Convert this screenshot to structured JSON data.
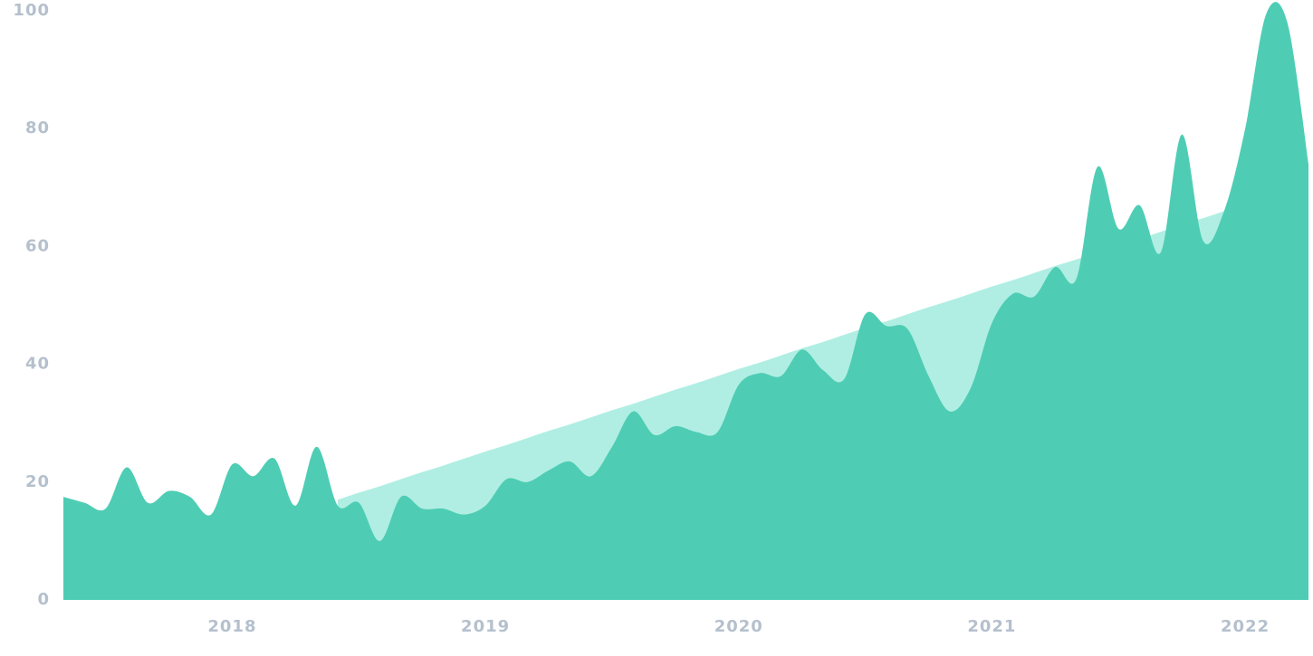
{
  "chart_data": {
    "type": "area",
    "categories": [
      null,
      null,
      null,
      null,
      null,
      null,
      null,
      null,
      "2018",
      null,
      null,
      null,
      null,
      null,
      null,
      null,
      null,
      null,
      null,
      null,
      "2019",
      null,
      null,
      null,
      null,
      null,
      null,
      null,
      null,
      null,
      null,
      null,
      "2020",
      null,
      null,
      null,
      null,
      null,
      null,
      null,
      null,
      null,
      null,
      null,
      "2021",
      null,
      null,
      null,
      null,
      null,
      null,
      null,
      null,
      null,
      null,
      null,
      "2022",
      null,
      null,
      null
    ],
    "series": [
      {
        "color": "#b0eee3",
        "values": [
          null,
          null,
          null,
          null,
          null,
          null,
          null,
          null,
          null,
          null,
          null,
          null,
          null,
          17.0,
          18.2,
          19.3,
          20.5,
          21.7,
          22.8,
          24.0,
          25.2,
          26.3,
          27.5,
          28.7,
          29.8,
          31.0,
          32.2,
          33.3,
          34.5,
          35.7,
          36.8,
          38.0,
          39.2,
          40.3,
          41.5,
          42.7,
          43.8,
          45.0,
          46.2,
          47.3,
          48.5,
          49.7,
          50.8,
          52.0,
          53.2,
          54.3,
          55.5,
          56.7,
          57.8,
          59.0,
          60.2,
          61.3,
          62.5,
          63.7,
          64.8,
          66.0,
          null,
          null,
          null,
          null
        ]
      },
      {
        "color": "#4ecdb4",
        "values": [
          17.5,
          16.5,
          15.5,
          22.5,
          16.5,
          18.5,
          17.5,
          14.5,
          23,
          21,
          24,
          16,
          26,
          16,
          16.5,
          10,
          17.5,
          15.5,
          15.5,
          14.5,
          16,
          20.5,
          20,
          22,
          23.5,
          21,
          26,
          32,
          28,
          29.5,
          28.5,
          28.5,
          36.5,
          38.5,
          38,
          42.5,
          39,
          37.5,
          48.5,
          46.5,
          46,
          38,
          32,
          36,
          47,
          52,
          51.5,
          56.5,
          54.5,
          73.5,
          63,
          67,
          59,
          79,
          61,
          66,
          80,
          99.5,
          98,
          74
        ]
      }
    ],
    "ylim": [
      0,
      100
    ],
    "yticks": [
      0,
      20,
      40,
      60,
      80,
      100
    ]
  }
}
